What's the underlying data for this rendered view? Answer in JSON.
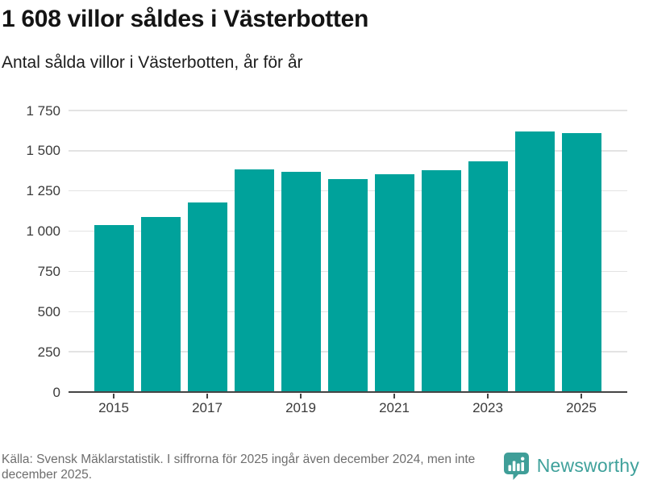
{
  "header": {
    "title": "1 608 villor såldes i Västerbotten",
    "subtitle": "Antal sålda villor i Västerbotten, år för år"
  },
  "chart_data": {
    "type": "bar",
    "title": "1 608 villor såldes i Västerbotten",
    "subtitle": "Antal sålda villor i Västerbotten, år för år",
    "categories": [
      "2015",
      "2016",
      "2017",
      "2018",
      "2019",
      "2020",
      "2021",
      "2022",
      "2023",
      "2024",
      "2025"
    ],
    "values": [
      1040,
      1090,
      1180,
      1385,
      1370,
      1325,
      1355,
      1380,
      1435,
      1618,
      1608
    ],
    "xlabel": "",
    "ylabel": "",
    "ylim": [
      0,
      1750
    ],
    "y_tick_values": [
      0,
      250,
      500,
      750,
      1000,
      1250,
      1500,
      1750
    ],
    "y_tick_labels": [
      "0",
      "250",
      "500",
      "750",
      "1 000",
      "1 250",
      "1 500",
      "1 750"
    ],
    "x_tick_labels": [
      "2015",
      "2017",
      "2019",
      "2021",
      "2023",
      "2025"
    ],
    "grid": "horizontal",
    "legend": "none",
    "bar_color": "#00a29b"
  },
  "footer": {
    "source_text": "Källa: Svensk Mäklarstatistik. I siffrorna för 2025 ingår även december 2024, men inte december 2025.",
    "logo_text": "Newsworthy",
    "logo_icon": "newsworthy-speech-bubble-chart-icon",
    "logo_color": "#3f9e98"
  },
  "colors": {
    "bar": "#00a29b",
    "grid_line": "#e3e3e3",
    "axis_line": "#454545",
    "title_text": "#141414",
    "tick_text": "#3b3b3b",
    "footer_text": "#6e6e6e",
    "logo_teal": "#3f9e98"
  }
}
